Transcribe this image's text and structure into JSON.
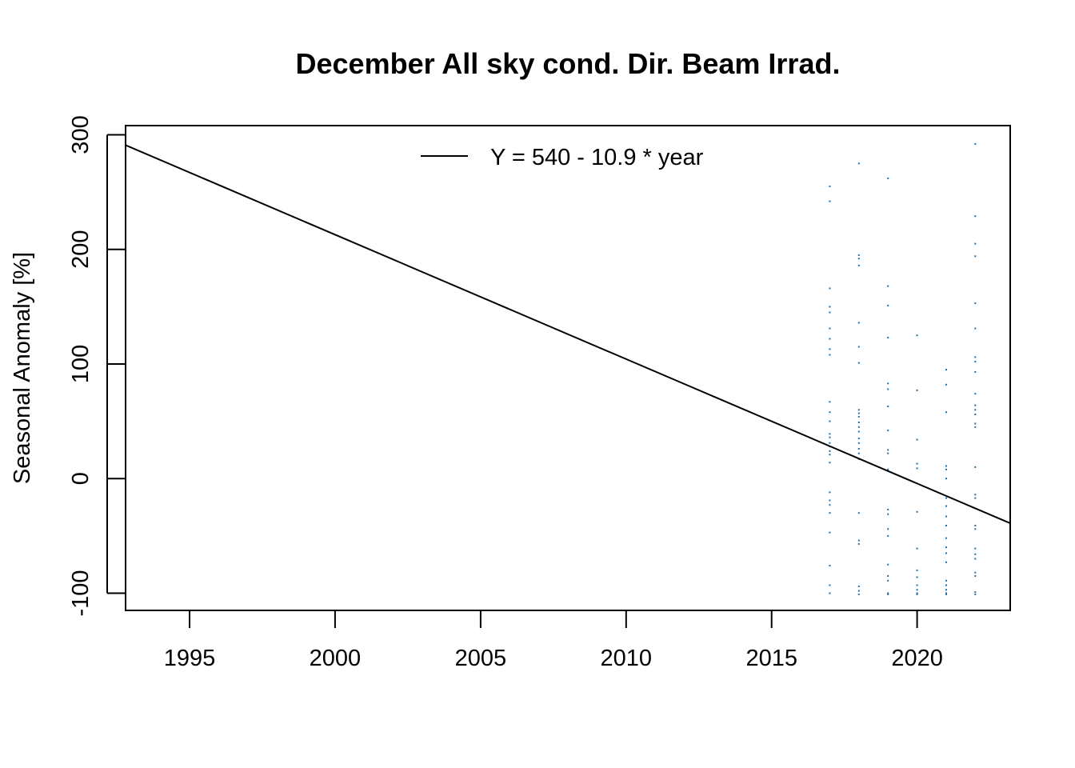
{
  "chart_data": {
    "type": "scatter",
    "title": "December All sky cond. Dir. Beam Irrad.",
    "xlabel": "",
    "ylabel": "Seasonal Anomaly [%]",
    "xlim": [
      1992.8,
      2023.2
    ],
    "ylim": [
      -115,
      308
    ],
    "x_ticks": [
      1995,
      2000,
      2005,
      2010,
      2015,
      2020
    ],
    "x_tick_labels": [
      "1995",
      "2000",
      "2005",
      "2010",
      "2015",
      "2020"
    ],
    "y_ticks": [
      -100,
      0,
      100,
      200,
      300
    ],
    "y_tick_labels": [
      "-100",
      "0",
      "100",
      "200",
      "300"
    ],
    "grid": false,
    "legend": {
      "position": "top-center",
      "entries": [
        {
          "label": "Y = 540 - 10.9 * year",
          "style": "line",
          "color": "#000000"
        }
      ]
    },
    "trend_line": {
      "x": [
        1992.8,
        2023.2
      ],
      "y": [
        291,
        -39
      ],
      "color": "#000000"
    },
    "point_color": "#1f6fa8",
    "points": [
      {
        "x": 2017,
        "y": 255
      },
      {
        "x": 2017,
        "y": 242
      },
      {
        "x": 2017,
        "y": 166
      },
      {
        "x": 2017,
        "y": 150
      },
      {
        "x": 2017,
        "y": 145
      },
      {
        "x": 2017,
        "y": 131
      },
      {
        "x": 2017,
        "y": 122
      },
      {
        "x": 2017,
        "y": 113
      },
      {
        "x": 2017,
        "y": 108
      },
      {
        "x": 2017,
        "y": 67
      },
      {
        "x": 2017,
        "y": 58
      },
      {
        "x": 2017,
        "y": 50
      },
      {
        "x": 2017,
        "y": 39
      },
      {
        "x": 2017,
        "y": 36
      },
      {
        "x": 2017,
        "y": 31
      },
      {
        "x": 2017,
        "y": 28
      },
      {
        "x": 2017,
        "y": 24
      },
      {
        "x": 2017,
        "y": 21
      },
      {
        "x": 2017,
        "y": 14
      },
      {
        "x": 2017,
        "y": -12
      },
      {
        "x": 2017,
        "y": -19
      },
      {
        "x": 2017,
        "y": -23
      },
      {
        "x": 2017,
        "y": -30
      },
      {
        "x": 2017,
        "y": -47
      },
      {
        "x": 2017,
        "y": -76
      },
      {
        "x": 2017,
        "y": -93
      },
      {
        "x": 2017,
        "y": -100
      },
      {
        "x": 2018,
        "y": 275
      },
      {
        "x": 2018,
        "y": 195
      },
      {
        "x": 2018,
        "y": 192
      },
      {
        "x": 2018,
        "y": 186
      },
      {
        "x": 2018,
        "y": 136
      },
      {
        "x": 2018,
        "y": 115
      },
      {
        "x": 2018,
        "y": 101
      },
      {
        "x": 2018,
        "y": 60
      },
      {
        "x": 2018,
        "y": 57
      },
      {
        "x": 2018,
        "y": 54
      },
      {
        "x": 2018,
        "y": 49
      },
      {
        "x": 2018,
        "y": 45
      },
      {
        "x": 2018,
        "y": 41
      },
      {
        "x": 2018,
        "y": 35
      },
      {
        "x": 2018,
        "y": 31
      },
      {
        "x": 2018,
        "y": 26
      },
      {
        "x": 2018,
        "y": 22
      },
      {
        "x": 2018,
        "y": 17
      },
      {
        "x": 2018,
        "y": -30
      },
      {
        "x": 2018,
        "y": -54
      },
      {
        "x": 2018,
        "y": -57
      },
      {
        "x": 2018,
        "y": -94
      },
      {
        "x": 2018,
        "y": -98
      },
      {
        "x": 2018,
        "y": -101
      },
      {
        "x": 2019,
        "y": 262
      },
      {
        "x": 2019,
        "y": 168
      },
      {
        "x": 2019,
        "y": 151
      },
      {
        "x": 2019,
        "y": 123
      },
      {
        "x": 2019,
        "y": 83
      },
      {
        "x": 2019,
        "y": 78
      },
      {
        "x": 2019,
        "y": 63
      },
      {
        "x": 2019,
        "y": 42
      },
      {
        "x": 2019,
        "y": 25
      },
      {
        "x": 2019,
        "y": 22
      },
      {
        "x": 2019,
        "y": 8
      },
      {
        "x": 2019,
        "y": -27
      },
      {
        "x": 2019,
        "y": -31
      },
      {
        "x": 2019,
        "y": -44
      },
      {
        "x": 2019,
        "y": -50
      },
      {
        "x": 2019,
        "y": -75
      },
      {
        "x": 2019,
        "y": -85
      },
      {
        "x": 2019,
        "y": -89
      },
      {
        "x": 2019,
        "y": -100
      },
      {
        "x": 2019,
        "y": -101
      },
      {
        "x": 2020,
        "y": 125
      },
      {
        "x": 2020,
        "y": 77
      },
      {
        "x": 2020,
        "y": 34
      },
      {
        "x": 2020,
        "y": 13
      },
      {
        "x": 2020,
        "y": 9
      },
      {
        "x": 2020,
        "y": -29
      },
      {
        "x": 2020,
        "y": -61
      },
      {
        "x": 2020,
        "y": -80
      },
      {
        "x": 2020,
        "y": -86
      },
      {
        "x": 2020,
        "y": -93
      },
      {
        "x": 2020,
        "y": -97
      },
      {
        "x": 2020,
        "y": -100
      },
      {
        "x": 2020,
        "y": -101
      },
      {
        "x": 2021,
        "y": 95
      },
      {
        "x": 2021,
        "y": 82
      },
      {
        "x": 2021,
        "y": 58
      },
      {
        "x": 2021,
        "y": 11
      },
      {
        "x": 2021,
        "y": 8
      },
      {
        "x": 2021,
        "y": 0
      },
      {
        "x": 2021,
        "y": -17
      },
      {
        "x": 2021,
        "y": -24
      },
      {
        "x": 2021,
        "y": -33
      },
      {
        "x": 2021,
        "y": -41
      },
      {
        "x": 2021,
        "y": -52
      },
      {
        "x": 2021,
        "y": -60
      },
      {
        "x": 2021,
        "y": -65
      },
      {
        "x": 2021,
        "y": -73
      },
      {
        "x": 2021,
        "y": -89
      },
      {
        "x": 2021,
        "y": -93
      },
      {
        "x": 2021,
        "y": -97
      },
      {
        "x": 2021,
        "y": -100
      },
      {
        "x": 2021,
        "y": -101
      },
      {
        "x": 2022,
        "y": 292
      },
      {
        "x": 2022,
        "y": 229
      },
      {
        "x": 2022,
        "y": 205
      },
      {
        "x": 2022,
        "y": 194
      },
      {
        "x": 2022,
        "y": 153
      },
      {
        "x": 2022,
        "y": 131
      },
      {
        "x": 2022,
        "y": 106
      },
      {
        "x": 2022,
        "y": 102
      },
      {
        "x": 2022,
        "y": 93
      },
      {
        "x": 2022,
        "y": 74
      },
      {
        "x": 2022,
        "y": 64
      },
      {
        "x": 2022,
        "y": 60
      },
      {
        "x": 2022,
        "y": 56
      },
      {
        "x": 2022,
        "y": 48
      },
      {
        "x": 2022,
        "y": 45
      },
      {
        "x": 2022,
        "y": 10
      },
      {
        "x": 2022,
        "y": -14
      },
      {
        "x": 2022,
        "y": -17
      },
      {
        "x": 2022,
        "y": -26
      },
      {
        "x": 2022,
        "y": -41
      },
      {
        "x": 2022,
        "y": -44
      },
      {
        "x": 2022,
        "y": -61
      },
      {
        "x": 2022,
        "y": -66
      },
      {
        "x": 2022,
        "y": -70
      },
      {
        "x": 2022,
        "y": -82
      },
      {
        "x": 2022,
        "y": -85
      },
      {
        "x": 2022,
        "y": -99
      },
      {
        "x": 2022,
        "y": -101
      }
    ]
  }
}
